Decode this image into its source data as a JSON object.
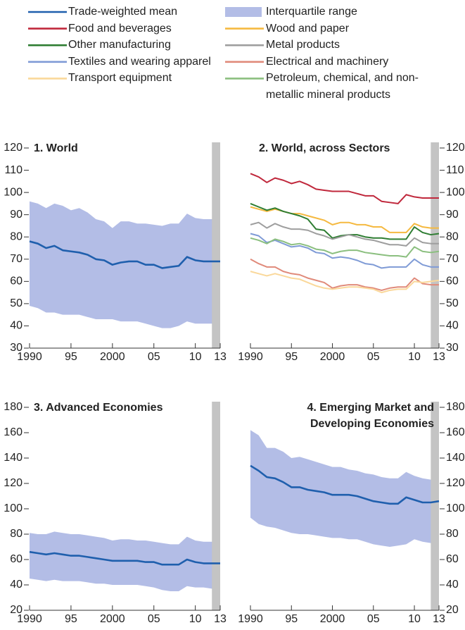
{
  "chart_data": [
    {
      "type": "line",
      "title": "1. World",
      "x": [
        1990,
        1991,
        1992,
        1993,
        1994,
        1995,
        1996,
        1997,
        1998,
        1999,
        2000,
        2001,
        2002,
        2003,
        2004,
        2005,
        2006,
        2007,
        2008,
        2009,
        2010,
        2011,
        2012,
        2013
      ],
      "xlim": [
        1990,
        2013
      ],
      "xticks": [
        1990,
        {
          "value": 1995,
          "label": "95"
        },
        2000,
        {
          "value": 2005,
          "label": "05"
        },
        {
          "value": 2010,
          "label": "10"
        },
        {
          "value": 2013,
          "label": "13"
        }
      ],
      "ylim": [
        30,
        120
      ],
      "yticks": [
        30,
        40,
        50,
        60,
        70,
        80,
        90,
        100,
        110,
        120
      ],
      "y_axis_side": "left",
      "shaded_xrange": [
        2012,
        2013
      ],
      "shade_color": "#c4c4c4",
      "band": {
        "name": "Interquartile range",
        "color": "#b3bde6",
        "upper": [
          96,
          95,
          93,
          95,
          94,
          92,
          93,
          91,
          88,
          87,
          84,
          87,
          87,
          86,
          86,
          85.5,
          85,
          86,
          86,
          90.5,
          88.5,
          88,
          88,
          88
        ],
        "lower": [
          49,
          48,
          46,
          46,
          45,
          45,
          45,
          44,
          43,
          43,
          43,
          42,
          42,
          42,
          41,
          40,
          39,
          39,
          40,
          42,
          41,
          41,
          41,
          41
        ]
      },
      "series": [
        {
          "name": "Trade-weighted mean",
          "color": "#1f5fad",
          "values": [
            78,
            77,
            75,
            76,
            74,
            73.5,
            73,
            72,
            70,
            69.5,
            67.5,
            68.5,
            69,
            69,
            67.5,
            67.5,
            66,
            66.5,
            67,
            71,
            69.5,
            69,
            69,
            69
          ]
        }
      ]
    },
    {
      "type": "line",
      "title": "2. World, across Sectors",
      "x": [
        1990,
        1991,
        1992,
        1993,
        1994,
        1995,
        1996,
        1997,
        1998,
        1999,
        2000,
        2001,
        2002,
        2003,
        2004,
        2005,
        2006,
        2007,
        2008,
        2009,
        2010,
        2011,
        2012,
        2013
      ],
      "xlim": [
        1990,
        2013
      ],
      "xticks": [
        1990,
        {
          "value": 1995,
          "label": "95"
        },
        2000,
        {
          "value": 2005,
          "label": "05"
        },
        {
          "value": 2010,
          "label": "10"
        },
        {
          "value": 2013,
          "label": "13"
        }
      ],
      "ylim": [
        30,
        120
      ],
      "yticks": [
        30,
        40,
        50,
        60,
        70,
        80,
        90,
        100,
        110,
        120
      ],
      "y_axis_side": "right",
      "shaded_xrange": [
        2012,
        2013
      ],
      "shade_color": "#c4c4c4",
      "series": [
        {
          "name": "Food and beverages",
          "color": "#c0283c",
          "values": [
            108.5,
            107,
            104.5,
            106.5,
            105.5,
            104,
            105,
            103.5,
            101.5,
            101,
            100.5,
            100.5,
            100.5,
            99.5,
            98.5,
            98.5,
            96,
            95.5,
            95,
            99,
            98,
            97.5,
            97.5,
            97.5
          ]
        },
        {
          "name": "Wood and paper",
          "color": "#f5b940",
          "values": [
            93.5,
            92.5,
            91.5,
            92.5,
            91.5,
            90.5,
            90.5,
            89.5,
            88.5,
            87.5,
            85.5,
            86.5,
            86.5,
            85.5,
            85.5,
            84.5,
            84.5,
            82,
            82,
            82,
            86,
            84.5,
            84,
            84
          ]
        },
        {
          "name": "Other manufacturing",
          "color": "#2e7d32",
          "values": [
            95,
            93.5,
            92,
            93,
            91.5,
            90.5,
            89.5,
            88,
            83.5,
            83,
            79.5,
            80.5,
            81,
            81,
            80,
            79.5,
            79.5,
            79,
            79,
            79,
            84.5,
            82,
            81,
            81.5
          ]
        },
        {
          "name": "Metal products",
          "color": "#9e9e9e",
          "values": [
            85.5,
            86.5,
            84,
            86,
            84.5,
            83.5,
            83.5,
            83,
            81.5,
            80.5,
            79,
            80,
            81,
            80,
            79,
            78.5,
            77.5,
            76.5,
            76.5,
            76,
            79.5,
            77.5,
            77,
            77
          ]
        },
        {
          "name": "Textiles and wearing apparel",
          "color": "#7f9bd6",
          "values": [
            81.5,
            80.5,
            77.5,
            78.5,
            77,
            75.5,
            76,
            75,
            73,
            72.5,
            70.5,
            71,
            70.5,
            69.5,
            68,
            67.5,
            66,
            66.5,
            66.5,
            66.5,
            70,
            67.5,
            66.5,
            66.5
          ]
        },
        {
          "name": "Electrical and machinery",
          "color": "#e08a7a",
          "values": [
            70,
            68,
            66.5,
            66.5,
            64.5,
            63.5,
            63,
            61.5,
            60.5,
            59.5,
            57,
            58,
            58.5,
            58.5,
            57.5,
            57,
            56,
            57,
            57.5,
            57.5,
            61.5,
            59,
            58.5,
            58.5
          ]
        },
        {
          "name": "Transport equipment",
          "color": "#fad89a",
          "values": [
            64.5,
            63.5,
            62.5,
            63.5,
            62.5,
            61.5,
            61,
            59.5,
            58,
            57,
            56.5,
            57,
            57.5,
            57.5,
            57,
            56.5,
            55,
            56,
            56.5,
            56.5,
            60,
            59.5,
            60,
            60.5
          ]
        },
        {
          "name": "Petroleum, chemical, and non-metallic mineral products",
          "color": "#8bbf7f",
          "values": [
            79.5,
            78.5,
            77,
            79,
            78,
            76.5,
            77,
            76,
            74.5,
            74,
            72.5,
            73.5,
            74,
            74,
            73,
            72.5,
            72,
            71.5,
            71.5,
            71,
            75.5,
            73.5,
            73,
            73.5
          ]
        }
      ]
    },
    {
      "type": "line",
      "title": "3. Advanced Economies",
      "x": [
        1990,
        1991,
        1992,
        1993,
        1994,
        1995,
        1996,
        1997,
        1998,
        1999,
        2000,
        2001,
        2002,
        2003,
        2004,
        2005,
        2006,
        2007,
        2008,
        2009,
        2010,
        2011,
        2012,
        2013
      ],
      "xlim": [
        1990,
        2013
      ],
      "xticks": [
        1990,
        {
          "value": 1995,
          "label": "95"
        },
        2000,
        {
          "value": 2005,
          "label": "05"
        },
        {
          "value": 2010,
          "label": "10"
        },
        {
          "value": 2013,
          "label": "13"
        }
      ],
      "ylim": [
        20,
        180
      ],
      "yticks": [
        20,
        40,
        60,
        80,
        100,
        120,
        140,
        160,
        180
      ],
      "y_axis_side": "left",
      "shaded_xrange": [
        2012,
        2013
      ],
      "shade_color": "#c4c4c4",
      "band": {
        "color": "#b3bde6",
        "upper": [
          81,
          80,
          80,
          82,
          81,
          80,
          80,
          79,
          78,
          77,
          75,
          76,
          76,
          75,
          75,
          74,
          73,
          72,
          72,
          78,
          75,
          74,
          74,
          74
        ],
        "lower": [
          45,
          44,
          43,
          44,
          43,
          43,
          43,
          42,
          41,
          41,
          40,
          40,
          40,
          40,
          39,
          38,
          36,
          35,
          35,
          39,
          38,
          38,
          37,
          37
        ]
      },
      "series": [
        {
          "color": "#1f5fad",
          "values": [
            66,
            65,
            64,
            65,
            64,
            63,
            63,
            62,
            61,
            60,
            59,
            59,
            59,
            59,
            58,
            58,
            56,
            56,
            56,
            60,
            58,
            57,
            57,
            57
          ]
        }
      ]
    },
    {
      "type": "line",
      "title": "4. Emerging Market and Developing Economies",
      "x": [
        1990,
        1991,
        1992,
        1993,
        1994,
        1995,
        1996,
        1997,
        1998,
        1999,
        2000,
        2001,
        2002,
        2003,
        2004,
        2005,
        2006,
        2007,
        2008,
        2009,
        2010,
        2011,
        2012,
        2013
      ],
      "xlim": [
        1990,
        2013
      ],
      "xticks": [
        1990,
        {
          "value": 1995,
          "label": "95"
        },
        2000,
        {
          "value": 2005,
          "label": "05"
        },
        {
          "value": 2010,
          "label": "10"
        },
        {
          "value": 2013,
          "label": "13"
        }
      ],
      "ylim": [
        20,
        180
      ],
      "yticks": [
        20,
        40,
        60,
        80,
        100,
        120,
        140,
        160,
        180
      ],
      "y_axis_side": "right",
      "shaded_xrange": [
        2012,
        2013
      ],
      "shade_color": "#c4c4c4",
      "band": {
        "color": "#b3bde6",
        "upper": [
          162,
          158,
          148,
          148,
          145,
          140,
          141,
          139,
          137,
          135,
          133,
          133,
          131,
          130,
          128,
          127,
          125,
          124,
          124,
          129,
          126,
          124,
          123,
          123
        ],
        "lower": [
          93,
          88,
          86,
          85,
          83,
          81,
          80,
          80,
          79,
          78,
          77,
          77,
          76,
          76,
          74,
          72,
          71,
          70,
          71,
          72,
          76,
          74,
          73,
          73
        ]
      },
      "series": [
        {
          "color": "#1f5fad",
          "values": [
            134,
            130,
            125,
            124,
            121,
            117,
            117,
            115,
            114,
            113,
            111,
            111,
            111,
            110,
            108,
            106,
            105,
            104,
            104,
            109,
            107,
            105,
            105,
            106
          ]
        }
      ]
    }
  ]
}
